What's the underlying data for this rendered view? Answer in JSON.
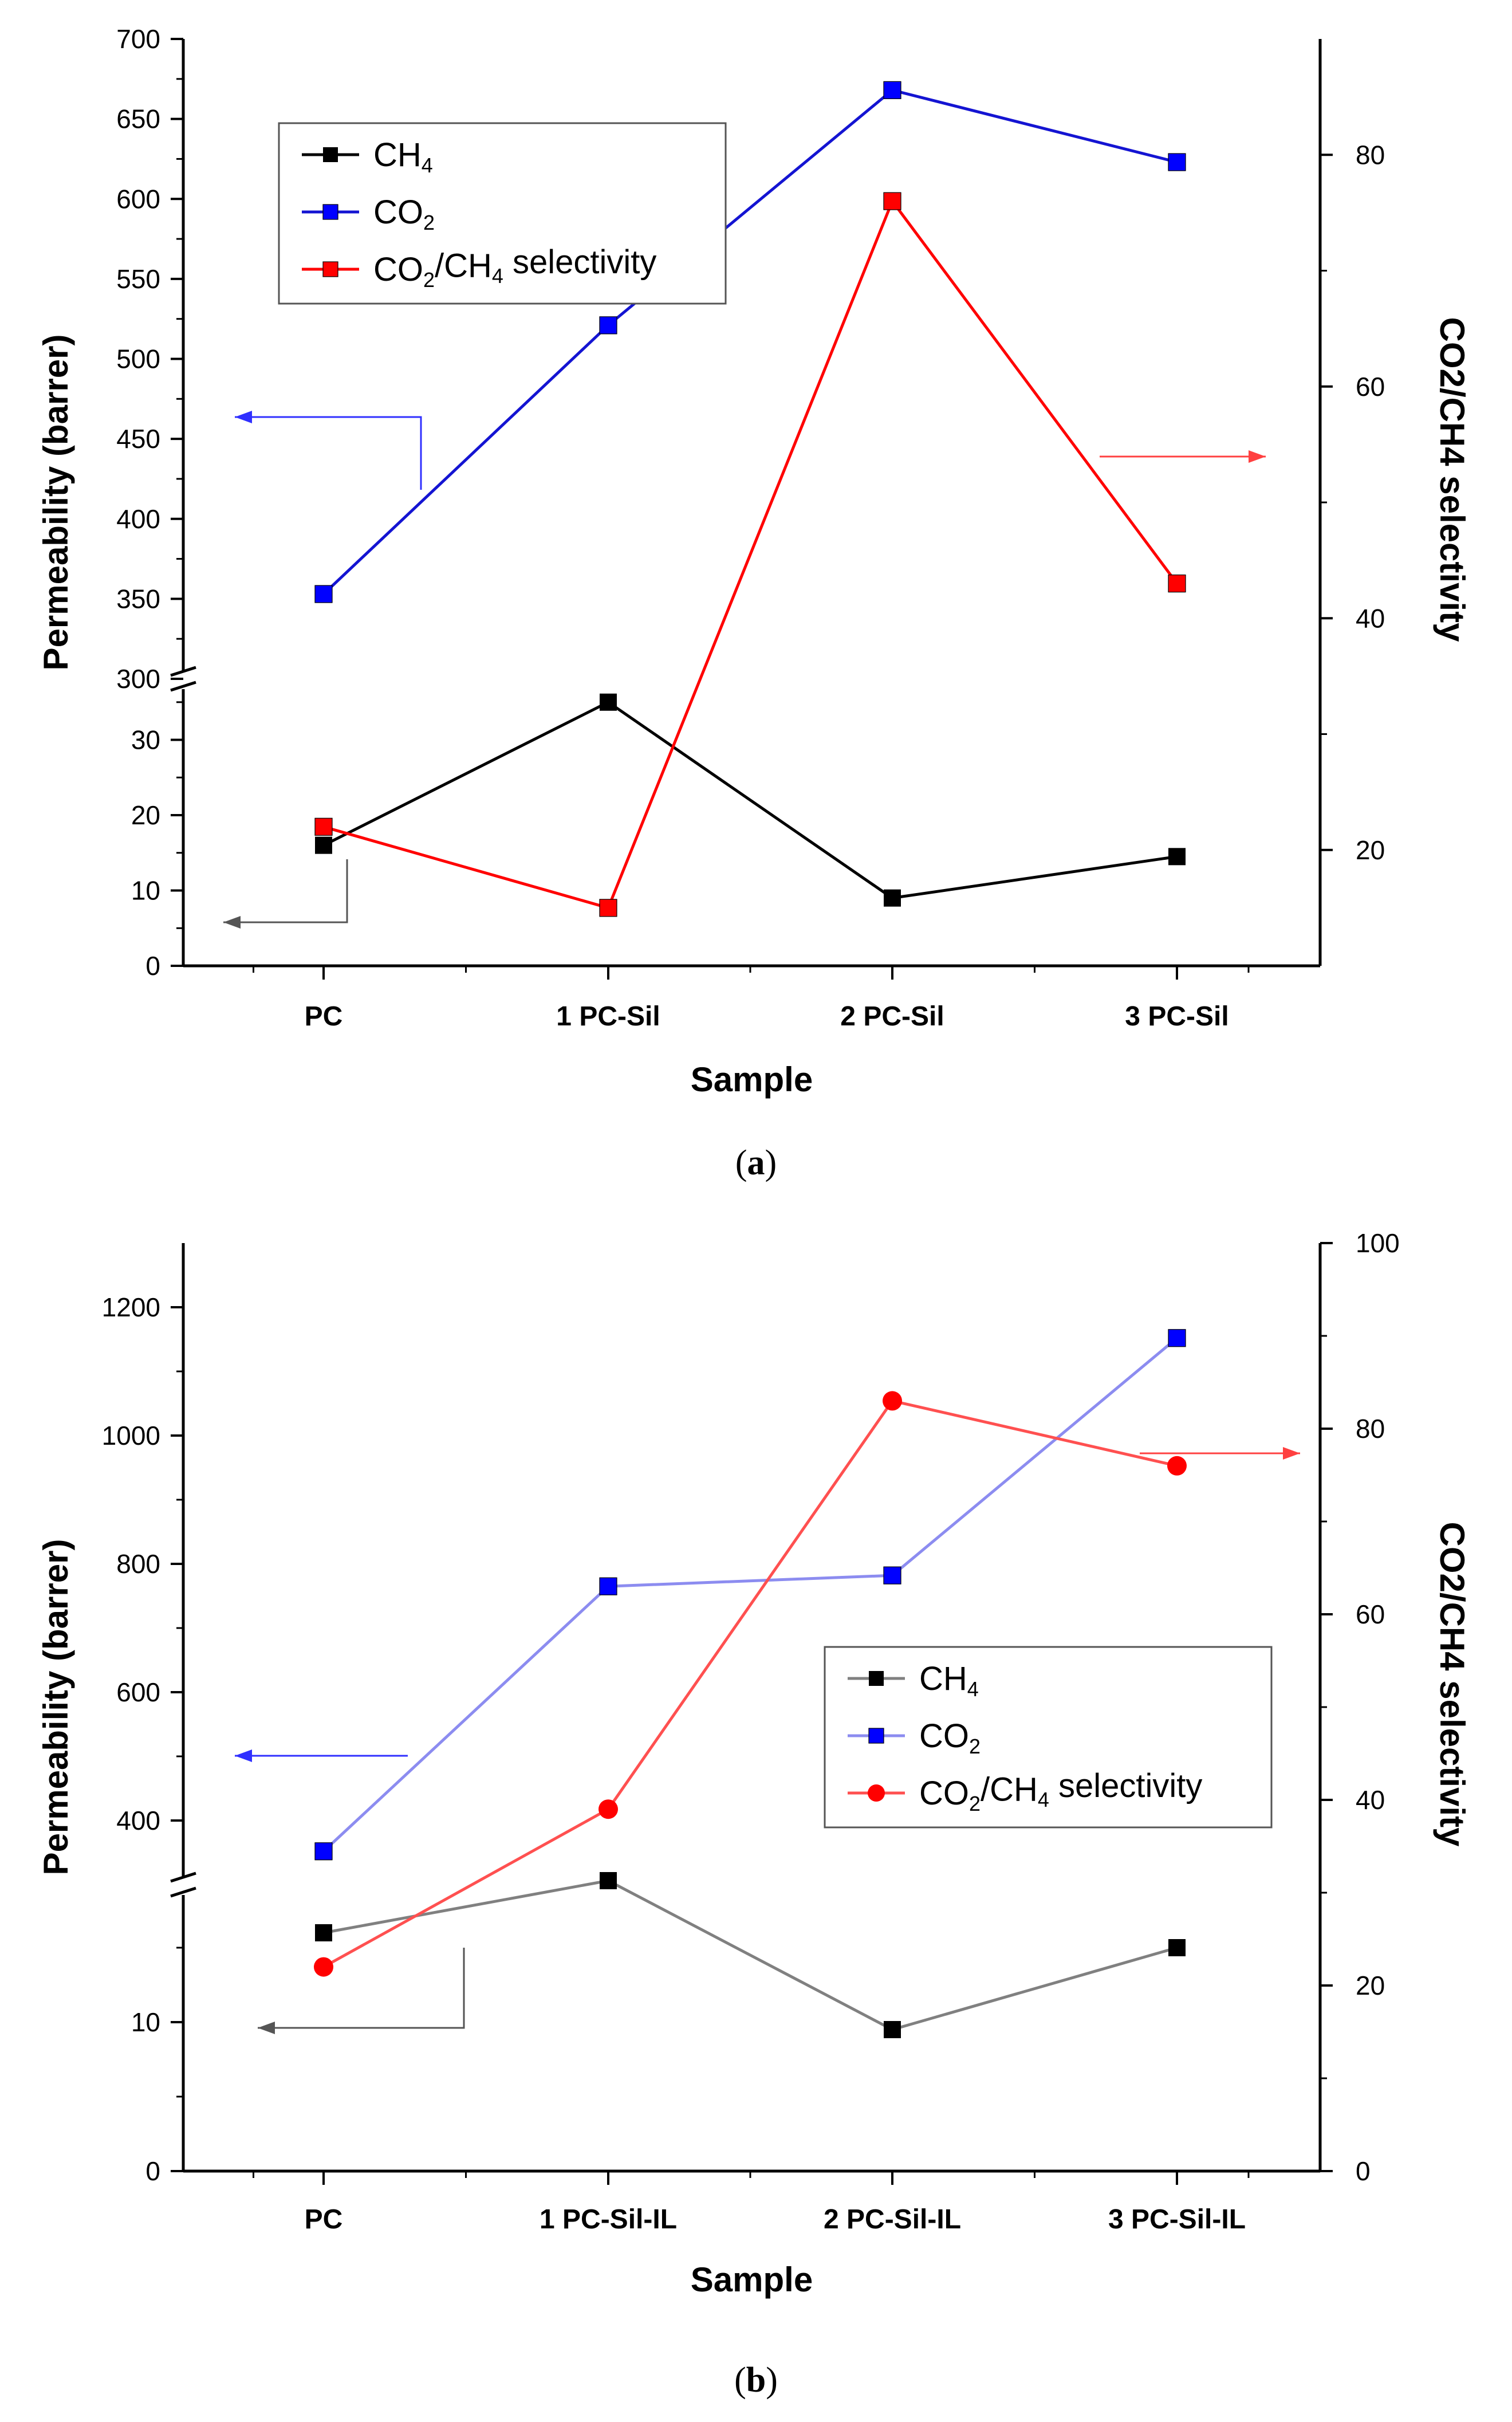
{
  "chart_data": [
    {
      "type": "line",
      "panel": "(a)",
      "caption_open": "(",
      "caption_letter": "a",
      "caption_close": ")",
      "xlabel": "Sample",
      "ylabel": "Permeability (barrer)",
      "ylabel_right": "CO2/CH4 selectivity",
      "categories": [
        "PC",
        "1 PC-Sil",
        "2 PC-Sil",
        "3 PC-Sil"
      ],
      "ylim_upper": [
        300,
        700
      ],
      "yticks_upper": [
        300,
        350,
        400,
        450,
        500,
        550,
        600,
        650,
        700
      ],
      "ylim_lower": [
        0,
        40
      ],
      "yticks_lower": [
        0,
        10,
        20,
        30
      ],
      "ylim_right": [
        10,
        90
      ],
      "yticks_right": [
        20,
        40,
        60,
        80
      ],
      "axis_break": true,
      "legend": [
        {
          "parts": [
            "CH",
            "4"
          ]
        },
        {
          "parts": [
            "CO",
            "2"
          ]
        },
        {
          "parts": [
            "CO",
            "2",
            "/CH",
            "4",
            " selectivity"
          ]
        }
      ],
      "legend_position": "top-left",
      "series": [
        {
          "name": "CH4",
          "axis": "left",
          "marker": "square",
          "color": "#000000",
          "values": [
            16,
            35,
            9,
            14.5
          ]
        },
        {
          "name": "CO2",
          "axis": "left",
          "marker": "square",
          "color": "#0000ff",
          "values": [
            353,
            521,
            668,
            623
          ]
        },
        {
          "name": "CO2/CH4 selectivity",
          "axis": "right",
          "marker": "square",
          "color": "#ff0000",
          "values": [
            22,
            15,
            76,
            43
          ]
        }
      ]
    },
    {
      "type": "line",
      "panel": "(b)",
      "caption_open": "(",
      "caption_letter": "b",
      "caption_close": ")",
      "xlabel": "Sample",
      "ylabel": "Permeability (barrer)",
      "ylabel_right": "CO2/CH4 selectivity",
      "categories": [
        "PC",
        "1 PC-Sil-IL",
        "2 PC-Sil-IL",
        "3 PC-Sil-IL"
      ],
      "ylim_upper": [
        300,
        1300
      ],
      "yticks_upper": [
        400,
        600,
        800,
        1000,
        1200
      ],
      "ylim_lower": [
        0,
        20
      ],
      "yticks_lower": [
        0,
        10
      ],
      "ylim_right": [
        0,
        100
      ],
      "yticks_right": [
        0,
        20,
        40,
        60,
        80,
        100
      ],
      "axis_break": true,
      "legend": [
        {
          "parts": [
            "CH",
            "4"
          ]
        },
        {
          "parts": [
            "CO",
            "2"
          ]
        },
        {
          "parts": [
            "CO",
            "2",
            "/CH",
            "4",
            " selectivity"
          ]
        }
      ],
      "legend_position": "center-right",
      "series": [
        {
          "name": "CH4",
          "axis": "left",
          "marker": "square",
          "color": "#000000",
          "values": [
            16,
            19.5,
            9.5,
            15
          ]
        },
        {
          "name": "CO2",
          "axis": "left",
          "marker": "square",
          "color": "#0000ff",
          "values": [
            352,
            765,
            782,
            1152
          ]
        },
        {
          "name": "CO2/CH4 selectivity",
          "axis": "right",
          "marker": "circle",
          "color": "#ff0000",
          "values": [
            22,
            39,
            83,
            76
          ]
        }
      ]
    }
  ]
}
